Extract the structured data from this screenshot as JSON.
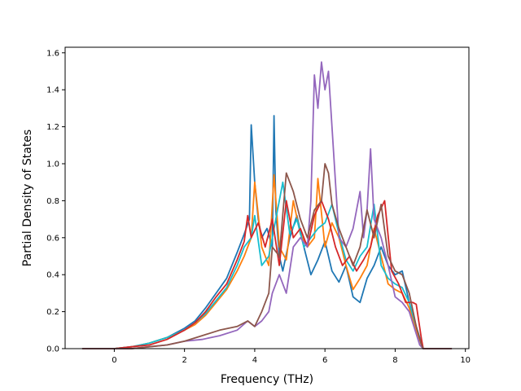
{
  "chart_data": {
    "type": "line",
    "title": "",
    "xlabel": "Frequency (THz)",
    "ylabel": "Partial Density of States",
    "xlim": [
      -1.4,
      10.1
    ],
    "ylim": [
      0.0,
      1.63
    ],
    "xticks": [
      0,
      2,
      4,
      6,
      8,
      10
    ],
    "xtick_labels": [
      "0",
      "2",
      "4",
      "6",
      "8",
      "10"
    ],
    "yticks": [
      0.0,
      0.2,
      0.4,
      0.6,
      0.8,
      1.0,
      1.2,
      1.4,
      1.6
    ],
    "ytick_labels": [
      "0.0",
      "0.2",
      "0.4",
      "0.6",
      "0.8",
      "1.0",
      "1.2",
      "1.4",
      "1.6"
    ],
    "grid": false,
    "legend": "none",
    "series": [
      {
        "color": "#1f77b4",
        "x": [
          -0.9,
          0.0,
          0.5,
          1.0,
          1.5,
          2.0,
          2.3,
          2.6,
          2.9,
          3.2,
          3.5,
          3.7,
          3.85,
          3.9,
          4.0,
          4.1,
          4.2,
          4.35,
          4.5,
          4.55,
          4.6,
          4.7,
          4.8,
          5.0,
          5.2,
          5.4,
          5.6,
          5.8,
          6.0,
          6.2,
          6.4,
          6.6,
          6.8,
          7.0,
          7.2,
          7.4,
          7.6,
          7.8,
          8.0,
          8.2,
          8.4,
          8.6,
          8.75,
          8.8,
          9.6
        ],
        "y": [
          0.0,
          0.0,
          0.01,
          0.03,
          0.06,
          0.11,
          0.15,
          0.22,
          0.3,
          0.38,
          0.52,
          0.62,
          0.7,
          1.21,
          0.9,
          0.7,
          0.6,
          0.65,
          0.55,
          1.26,
          0.75,
          0.5,
          0.42,
          0.6,
          0.72,
          0.55,
          0.4,
          0.48,
          0.58,
          0.42,
          0.36,
          0.45,
          0.28,
          0.25,
          0.38,
          0.45,
          0.55,
          0.45,
          0.4,
          0.42,
          0.25,
          0.1,
          0.02,
          0.0,
          0.0
        ]
      },
      {
        "color": "#ff7f0e",
        "x": [
          -0.9,
          0.0,
          0.5,
          1.0,
          1.5,
          2.0,
          2.3,
          2.6,
          2.9,
          3.2,
          3.5,
          3.7,
          3.9,
          4.0,
          4.2,
          4.4,
          4.55,
          4.7,
          4.9,
          5.1,
          5.3,
          5.5,
          5.7,
          5.8,
          6.0,
          6.2,
          6.4,
          6.6,
          6.8,
          7.0,
          7.2,
          7.4,
          7.6,
          7.8,
          8.0,
          8.2,
          8.4,
          8.6,
          8.75,
          8.8,
          9.6
        ],
        "y": [
          0.0,
          0.0,
          0.01,
          0.03,
          0.06,
          0.1,
          0.13,
          0.18,
          0.25,
          0.32,
          0.42,
          0.5,
          0.6,
          0.9,
          0.55,
          0.45,
          0.94,
          0.55,
          0.48,
          0.8,
          0.62,
          0.55,
          0.6,
          0.92,
          0.55,
          0.68,
          0.6,
          0.45,
          0.32,
          0.38,
          0.45,
          0.65,
          0.5,
          0.35,
          0.32,
          0.3,
          0.22,
          0.1,
          0.02,
          0.0,
          0.0
        ]
      },
      {
        "color": "#17becf",
        "x": [
          -0.9,
          0.0,
          0.5,
          1.0,
          1.5,
          2.0,
          2.3,
          2.6,
          2.9,
          3.2,
          3.5,
          3.7,
          3.9,
          4.0,
          4.2,
          4.4,
          4.6,
          4.8,
          5.0,
          5.2,
          5.4,
          5.6,
          5.8,
          6.0,
          6.2,
          6.4,
          6.6,
          6.8,
          7.0,
          7.2,
          7.4,
          7.6,
          7.8,
          8.0,
          8.2,
          8.4,
          8.6,
          8.75,
          8.8,
          9.6
        ],
        "y": [
          0.0,
          0.0,
          0.01,
          0.03,
          0.06,
          0.1,
          0.14,
          0.19,
          0.26,
          0.33,
          0.45,
          0.55,
          0.6,
          0.72,
          0.45,
          0.5,
          0.7,
          0.9,
          0.62,
          0.7,
          0.55,
          0.6,
          0.65,
          0.68,
          0.78,
          0.62,
          0.48,
          0.42,
          0.5,
          0.55,
          0.78,
          0.45,
          0.38,
          0.35,
          0.33,
          0.25,
          0.12,
          0.03,
          0.0,
          0.0
        ]
      },
      {
        "color": "#d62728",
        "x": [
          -0.9,
          0.0,
          0.5,
          1.0,
          1.5,
          2.0,
          2.3,
          2.6,
          2.9,
          3.2,
          3.5,
          3.7,
          3.8,
          3.9,
          4.1,
          4.3,
          4.5,
          4.7,
          4.9,
          5.1,
          5.3,
          5.5,
          5.7,
          5.9,
          6.1,
          6.3,
          6.5,
          6.7,
          6.9,
          7.1,
          7.3,
          7.5,
          7.7,
          7.9,
          8.1,
          8.3,
          8.5,
          8.6,
          8.75,
          8.8,
          9.6
        ],
        "y": [
          0.0,
          0.0,
          0.01,
          0.02,
          0.05,
          0.1,
          0.14,
          0.2,
          0.28,
          0.35,
          0.48,
          0.58,
          0.72,
          0.6,
          0.68,
          0.55,
          0.7,
          0.45,
          0.8,
          0.6,
          0.65,
          0.55,
          0.72,
          0.8,
          0.7,
          0.55,
          0.45,
          0.5,
          0.42,
          0.48,
          0.55,
          0.72,
          0.8,
          0.42,
          0.35,
          0.25,
          0.25,
          0.24,
          0.05,
          0.0,
          0.0
        ]
      },
      {
        "color": "#9467bd",
        "x": [
          -0.9,
          0.0,
          0.5,
          1.0,
          1.5,
          2.0,
          2.5,
          3.0,
          3.5,
          3.8,
          4.0,
          4.2,
          4.4,
          4.5,
          4.7,
          4.9,
          5.1,
          5.3,
          5.5,
          5.6,
          5.7,
          5.8,
          5.9,
          6.0,
          6.1,
          6.2,
          6.3,
          6.4,
          6.6,
          6.8,
          7.0,
          7.1,
          7.2,
          7.3,
          7.4,
          7.6,
          7.8,
          8.0,
          8.2,
          8.4,
          8.6,
          8.7,
          8.8,
          9.6
        ],
        "y": [
          0.0,
          0.0,
          0.0,
          0.01,
          0.02,
          0.04,
          0.05,
          0.07,
          0.1,
          0.15,
          0.12,
          0.15,
          0.2,
          0.3,
          0.4,
          0.3,
          0.55,
          0.6,
          0.55,
          0.8,
          1.48,
          1.3,
          1.55,
          1.4,
          1.5,
          1.2,
          0.9,
          0.6,
          0.55,
          0.65,
          0.85,
          0.6,
          0.75,
          1.08,
          0.7,
          0.6,
          0.45,
          0.28,
          0.25,
          0.2,
          0.08,
          0.02,
          0.0,
          0.0
        ]
      },
      {
        "color": "#8c564b",
        "x": [
          -0.9,
          0.0,
          0.5,
          1.0,
          1.5,
          2.0,
          2.5,
          3.0,
          3.5,
          3.8,
          4.0,
          4.2,
          4.4,
          4.5,
          4.7,
          4.9,
          5.1,
          5.3,
          5.5,
          5.7,
          5.9,
          6.0,
          6.1,
          6.2,
          6.4,
          6.6,
          6.8,
          7.0,
          7.2,
          7.4,
          7.6,
          7.8,
          8.0,
          8.2,
          8.4,
          8.6,
          8.75,
          8.8,
          9.6
        ],
        "y": [
          0.0,
          0.0,
          0.0,
          0.01,
          0.02,
          0.04,
          0.07,
          0.1,
          0.12,
          0.15,
          0.12,
          0.2,
          0.3,
          0.55,
          0.5,
          0.95,
          0.85,
          0.7,
          0.6,
          0.75,
          0.8,
          1.0,
          0.95,
          0.78,
          0.65,
          0.55,
          0.45,
          0.55,
          0.75,
          0.6,
          0.78,
          0.5,
          0.42,
          0.4,
          0.3,
          0.12,
          0.02,
          0.0,
          0.0
        ]
      }
    ]
  }
}
